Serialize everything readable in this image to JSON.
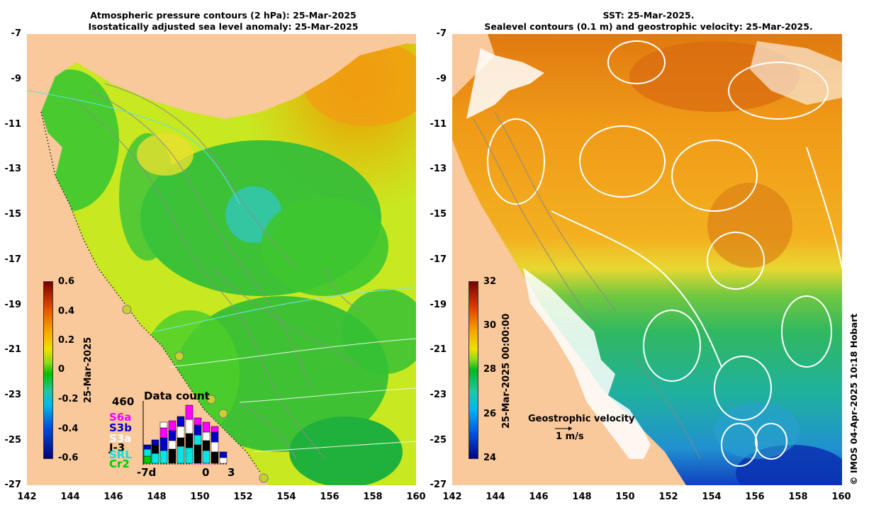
{
  "left_panel": {
    "title_line1": "Atmospheric pressure contours (2 hPa): 25-Mar-2025",
    "title_line2": "Isostatically adjusted sea level anomaly: 25-Mar-2025",
    "colorbar": {
      "label": "25-Mar-2025",
      "ticks": [
        "0.6",
        "0.4",
        "0.2",
        "0",
        "-0.2",
        "-0.4",
        "-0.6"
      ],
      "range": [
        -0.6,
        0.6
      ]
    },
    "data_count": {
      "title": "Data count",
      "total": "460",
      "missions": [
        {
          "name": "S6a",
          "color": "#ff00ff"
        },
        {
          "name": "S3b",
          "color": "#0000cc"
        },
        {
          "name": "S3a",
          "color": "#ffffff"
        },
        {
          "name": "J-3",
          "color": "#000000"
        },
        {
          "name": "SRL",
          "color": "#00e5e5"
        },
        {
          "name": "Cr2",
          "color": "#00cc00"
        }
      ],
      "x_labels": [
        "-7d",
        "0",
        "3"
      ]
    }
  },
  "right_panel": {
    "title_line1": "SST: 25-Mar-2025.",
    "title_line2": "Sealevel contours (0.1 m) and geostrophic velocity: 25-Mar-2025.",
    "colorbar": {
      "label": "25-Mar-2025 00:00:00",
      "ticks": [
        "32",
        "30",
        "28",
        "26",
        "24"
      ],
      "range": [
        24,
        32
      ]
    },
    "velocity_legend": {
      "label": "Geostrophic velocity",
      "scale": "1 m/s"
    }
  },
  "y_axis_labels": [
    "-7",
    "-9",
    "-11",
    "-13",
    "-15",
    "-17",
    "-19",
    "-21",
    "-23",
    "-25",
    "-27"
  ],
  "x_axis_labels": [
    "142",
    "144",
    "146",
    "148",
    "150",
    "152",
    "154",
    "156",
    "158",
    "160"
  ],
  "credit": "© IMOS 04-Apr-2025 10:18 Hobart",
  "colors": {
    "land": "#f9c89b",
    "accent_title": "#000000"
  }
}
